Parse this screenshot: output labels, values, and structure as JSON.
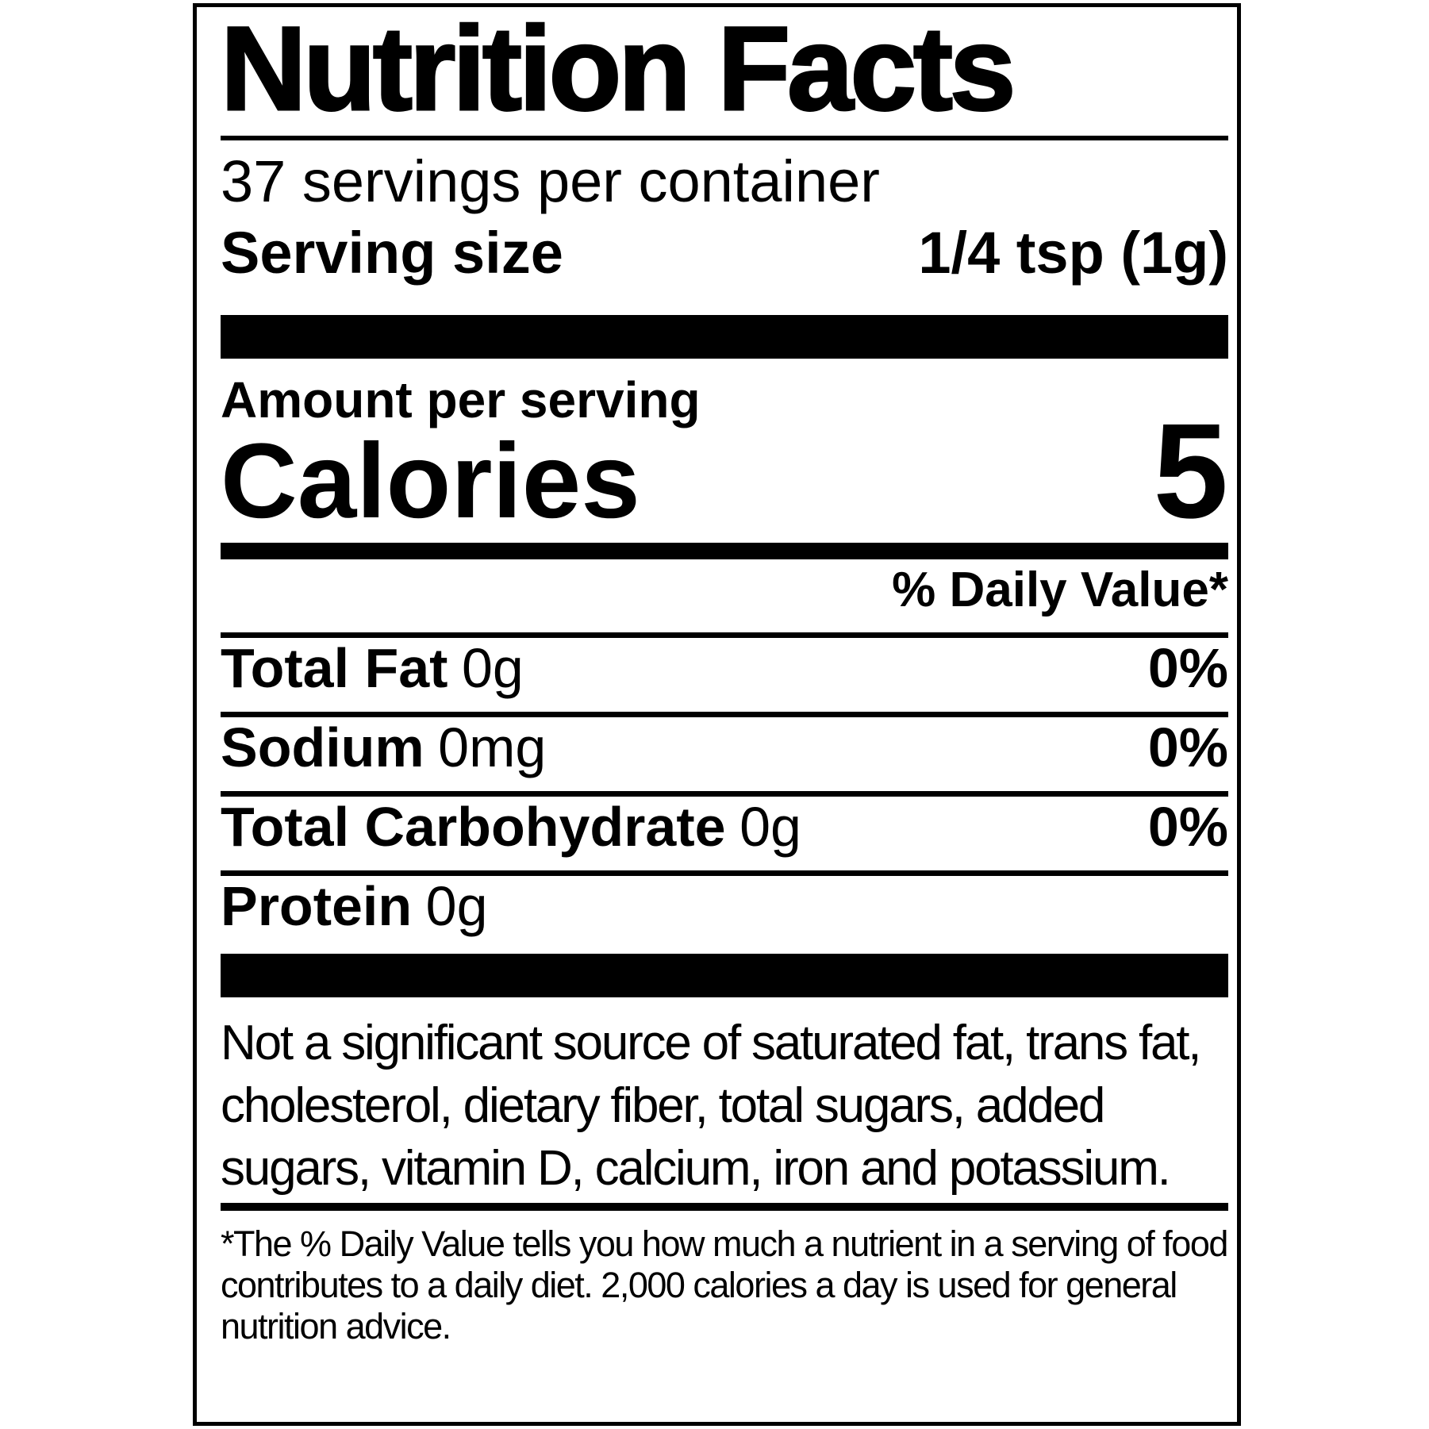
{
  "label": {
    "title": "Nutrition Facts",
    "servings_per_container": "37 servings per container",
    "serving_size": {
      "label": "Serving size",
      "value": "1/4 tsp (1g)"
    },
    "amount_per_serving": "Amount per serving",
    "calories": {
      "label": "Calories",
      "value": "5"
    },
    "daily_value_header": "% Daily Value*",
    "nutrients": [
      {
        "name": "Total Fat",
        "amount": "0g",
        "dv": "0%"
      },
      {
        "name": "Sodium",
        "amount": "0mg",
        "dv": "0%"
      },
      {
        "name": "Total Carbohydrate",
        "amount": "0g",
        "dv": "0%"
      },
      {
        "name": "Protein",
        "amount": "0g",
        "dv": ""
      }
    ],
    "not_significant_note": "Not a significant source of saturated fat, trans fat, cholesterol, dietary fiber, total sugars, added sugars, vitamin D, calcium, iron and potassium.",
    "footnote": "*The % Daily Value tells you how much a nutrient in a serving of food contributes to a daily diet. 2,000 calories a day is used for general nutrition advice."
  },
  "colors": {
    "text": "#000000",
    "background": "#ffffff"
  }
}
